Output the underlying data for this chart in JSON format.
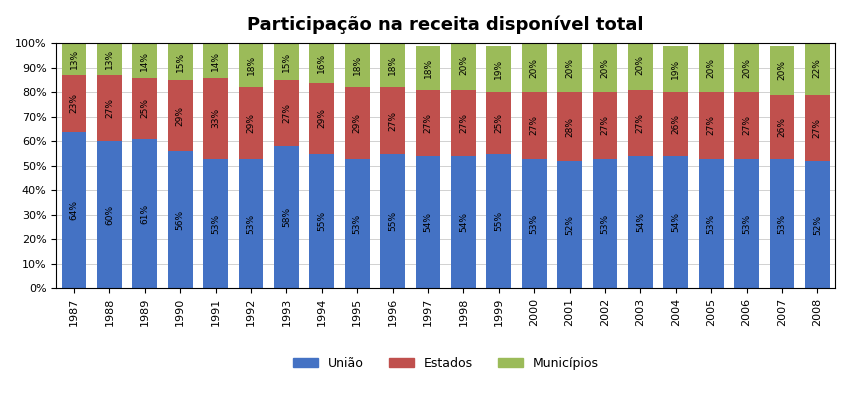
{
  "title": "Participação na receita disponível total",
  "years": [
    1987,
    1988,
    1989,
    1990,
    1991,
    1992,
    1993,
    1994,
    1995,
    1996,
    1997,
    1998,
    1999,
    2000,
    2001,
    2002,
    2003,
    2004,
    2005,
    2006,
    2007,
    2008
  ],
  "uniao": [
    64,
    60,
    61,
    56,
    53,
    53,
    58,
    55,
    53,
    55,
    54,
    54,
    55,
    53,
    52,
    53,
    54,
    54,
    53,
    53,
    53,
    52
  ],
  "estados": [
    23,
    27,
    25,
    29,
    33,
    29,
    27,
    29,
    29,
    27,
    27,
    27,
    25,
    27,
    28,
    27,
    27,
    26,
    27,
    27,
    26,
    27
  ],
  "municipios": [
    13,
    13,
    14,
    15,
    14,
    18,
    15,
    16,
    18,
    18,
    18,
    20,
    19,
    20,
    20,
    20,
    20,
    19,
    20,
    20,
    20,
    22
  ],
  "color_uniao": "#4472C4",
  "color_estados": "#C0504D",
  "color_municipios": "#9BBB59",
  "legend_labels": [
    "União",
    "Estados",
    "Municípios"
  ],
  "ylabel_ticks": [
    "0%",
    "10%",
    "20%",
    "30%",
    "40%",
    "50%",
    "60%",
    "70%",
    "80%",
    "90%",
    "100%"
  ],
  "bar_width": 0.7,
  "figure_width": 8.5,
  "figure_height": 4.2,
  "title_fontsize": 13,
  "label_fontsize": 6.5,
  "tick_fontsize": 8,
  "legend_fontsize": 9
}
